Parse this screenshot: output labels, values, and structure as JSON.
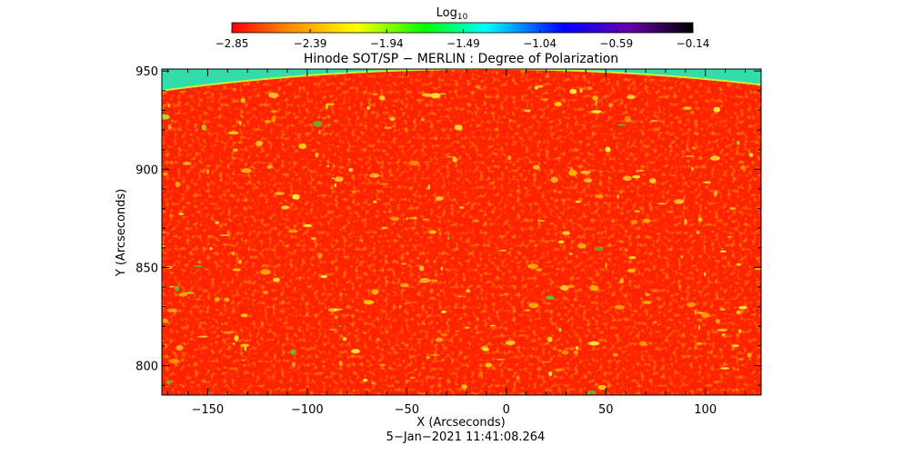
{
  "chart_data": {
    "type": "heatmap",
    "title": "Hinode SOT/SP − MERLIN : Degree of Polarization",
    "xlabel": "X (Arcseconds)",
    "ylabel": "Y (Arcseconds)",
    "timestamp": "5−Jan−2021 11:41:08.264",
    "xlim": [
      -173,
      128
    ],
    "ylim": [
      785,
      951
    ],
    "x_ticks": [
      {
        "value": -150,
        "label": "−150"
      },
      {
        "value": -100,
        "label": "−100"
      },
      {
        "value": -50,
        "label": "−50"
      },
      {
        "value": 0,
        "label": "0"
      },
      {
        "value": 50,
        "label": "50"
      },
      {
        "value": 100,
        "label": "100"
      }
    ],
    "y_ticks": [
      {
        "value": 800,
        "label": "800"
      },
      {
        "value": 850,
        "label": "850"
      },
      {
        "value": 900,
        "label": "900"
      },
      {
        "value": 950,
        "label": "950"
      }
    ],
    "colorbar": {
      "title_base": "Log",
      "title_sub": "10",
      "min": -2.85,
      "max": -0.14,
      "tick_values": [
        -2.85,
        -2.39,
        -1.94,
        -1.49,
        -1.04,
        -0.59,
        -0.14
      ],
      "tick_labels": [
        "−2.85",
        "−2.39",
        "−1.94",
        "−1.49",
        "−1.04",
        "−0.59",
        "−0.14"
      ],
      "colors": [
        "#ff0000",
        "#ff8800",
        "#ffff00",
        "#00ff00",
        "#00ffff",
        "#0000ff",
        "#6600aa",
        "#000000"
      ]
    },
    "background_value": -2.85,
    "limb_value": -1.3,
    "limb_edge_y_at_xmin": 940,
    "limb_edge_y_at_xmax": 943,
    "limb_edge_y_at_center": 951
  }
}
